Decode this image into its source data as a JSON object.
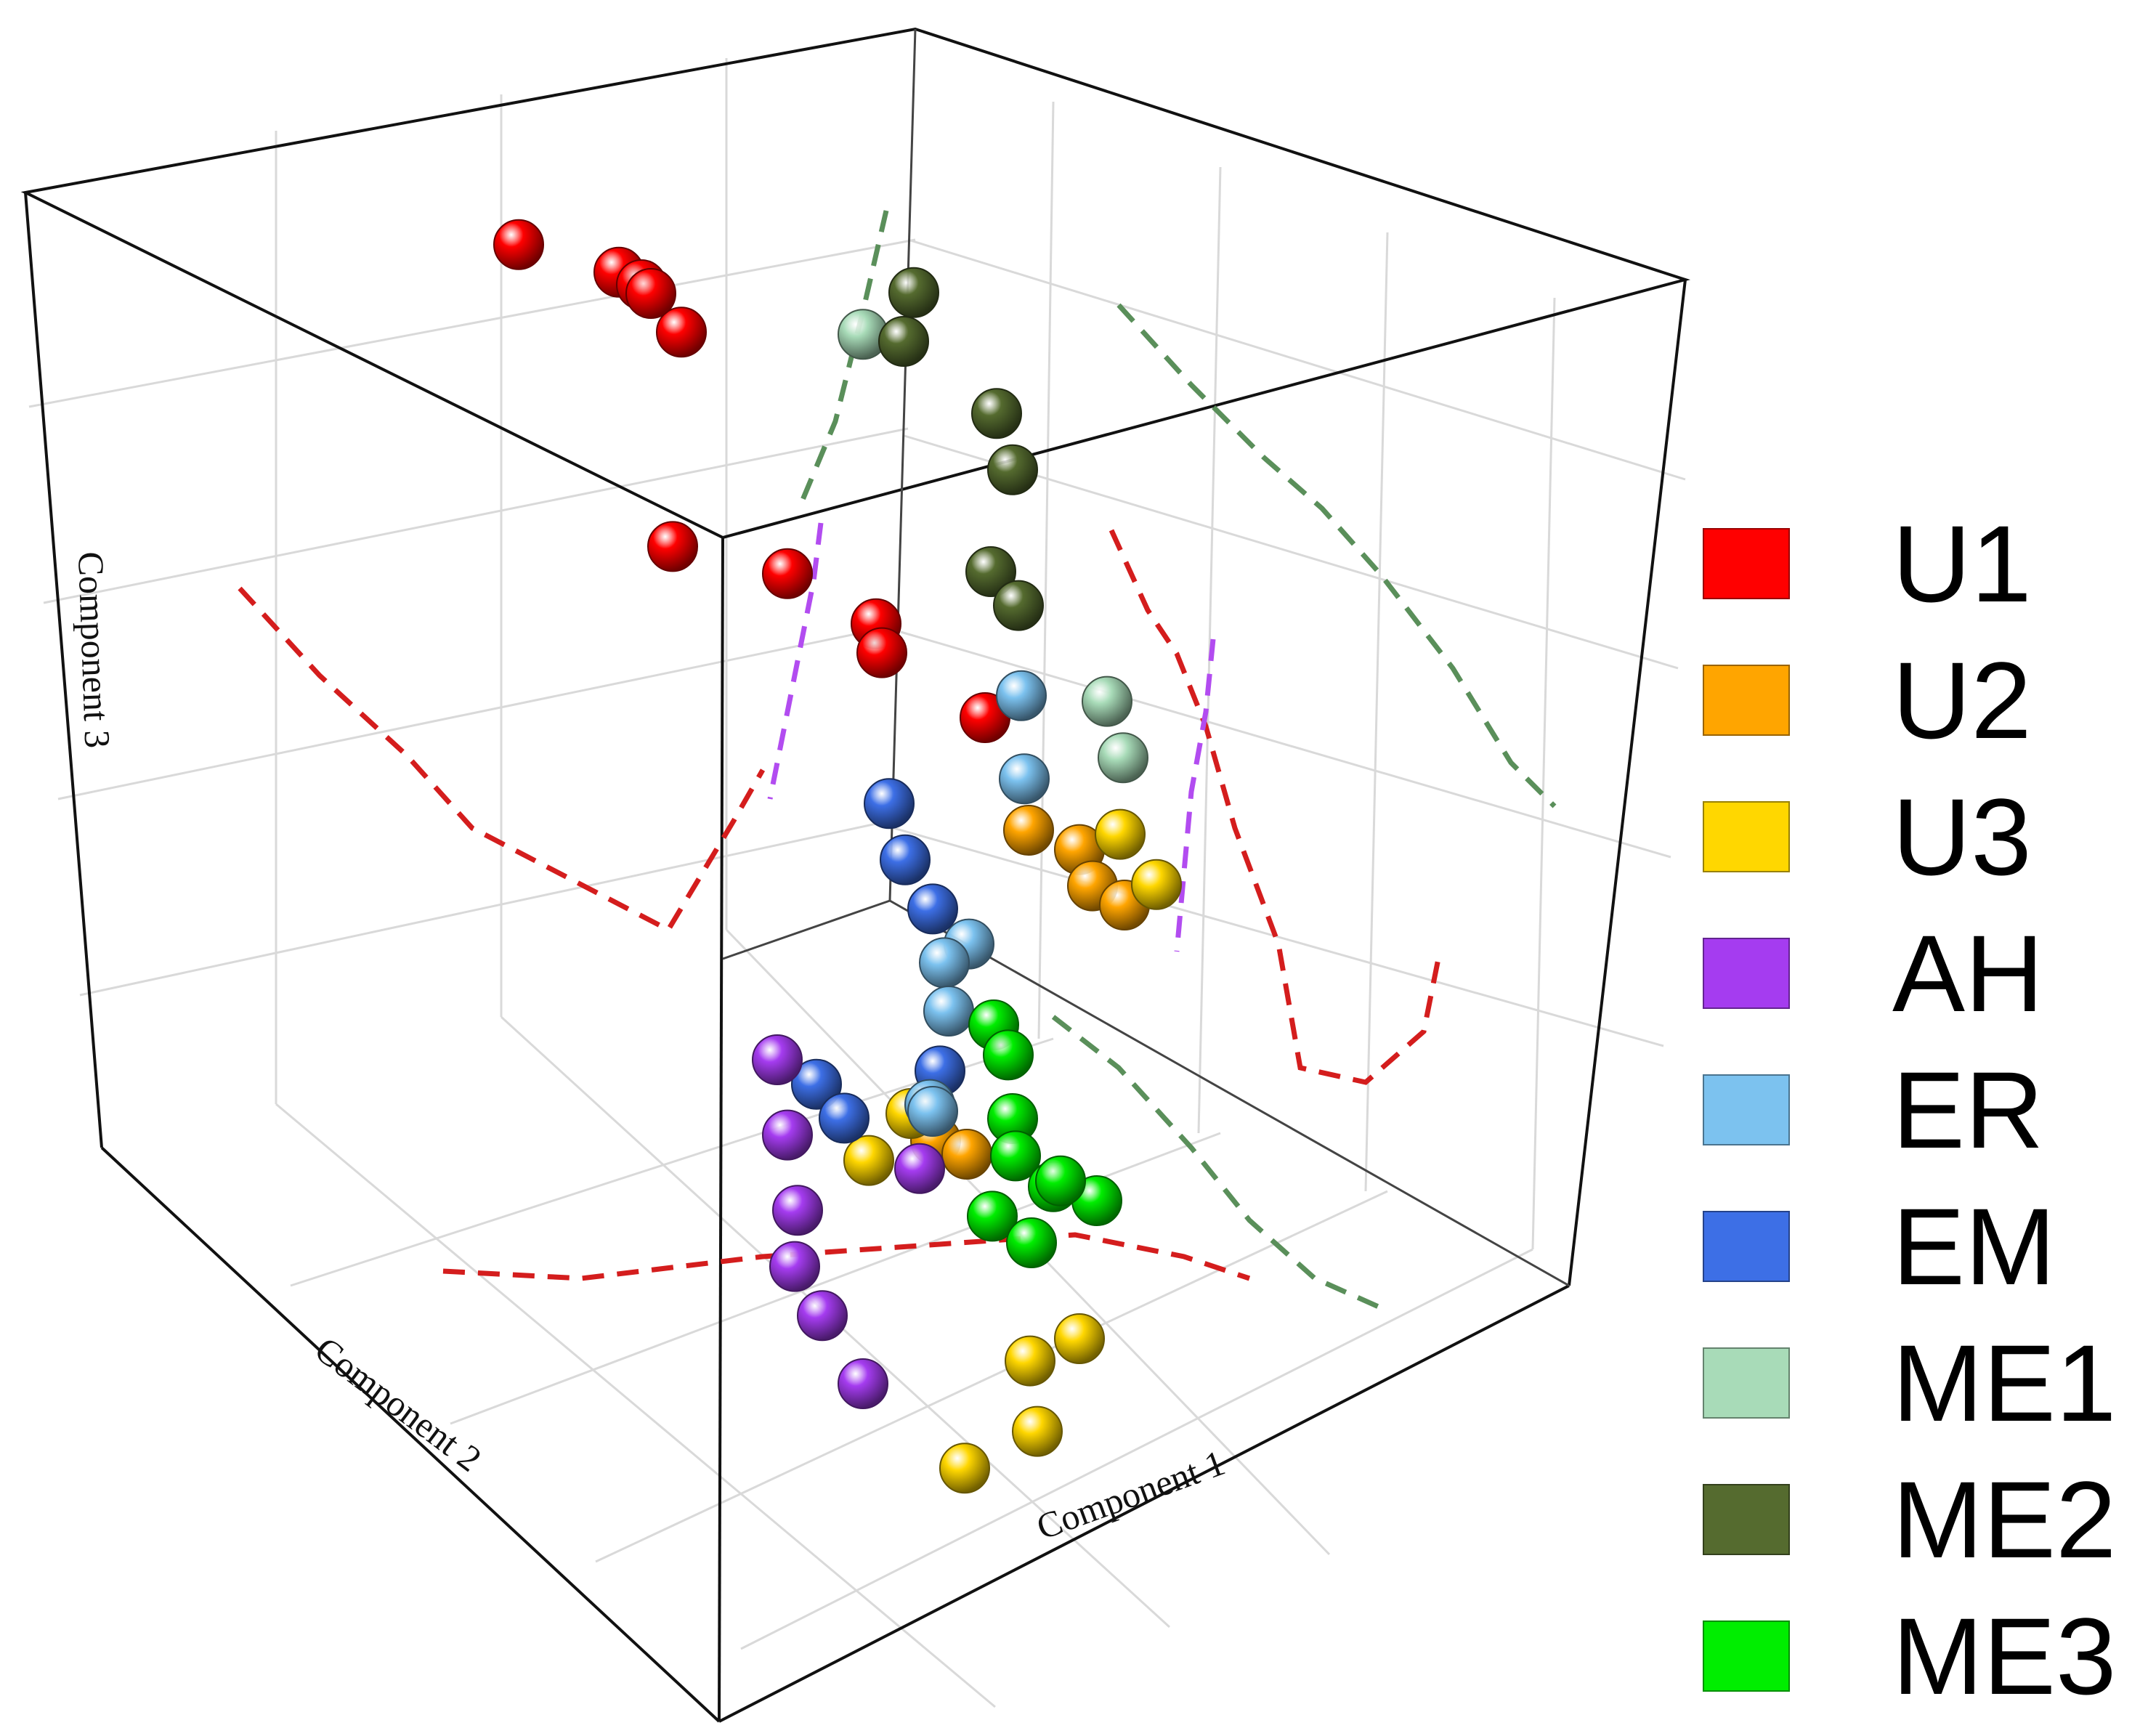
{
  "chart_data": {
    "type": "scatter",
    "title": "",
    "axes": {
      "x": "Component 1",
      "y": "Component 2",
      "z": "Component 3"
    },
    "grid": true,
    "legend_position": "right",
    "series": [
      {
        "name": "U1",
        "color": "#ff0000",
        "points": [
          [
            -0.72,
            -0.44,
            0.72
          ],
          [
            -0.62,
            -0.5,
            0.68
          ],
          [
            -0.55,
            -0.46,
            0.7
          ],
          [
            -0.5,
            -0.42,
            0.72
          ],
          [
            -0.48,
            -0.45,
            0.66
          ],
          [
            -0.36,
            -0.3,
            0.48
          ],
          [
            -0.22,
            -0.34,
            0.46
          ],
          [
            -0.12,
            -0.38,
            0.4
          ],
          [
            -0.04,
            -0.3,
            0.42
          ],
          [
            0.1,
            -0.32,
            0.36
          ]
        ]
      },
      {
        "name": "U2",
        "color": "#ffa500",
        "points": [
          [
            -0.1,
            -0.62,
            0.02
          ],
          [
            -0.04,
            -0.64,
            0.0
          ],
          [
            0.06,
            -0.55,
            0.02
          ],
          [
            0.1,
            -0.56,
            0.0
          ],
          [
            0.22,
            -0.1,
            -0.06
          ],
          [
            0.25,
            -0.12,
            -0.08
          ]
        ]
      },
      {
        "name": "U3",
        "color": "#ffd700",
        "points": [
          [
            0.36,
            -0.26,
            0.3
          ],
          [
            0.38,
            -0.3,
            0.22
          ],
          [
            0.2,
            -0.08,
            -0.02
          ],
          [
            0.26,
            0.06,
            0.0
          ],
          [
            0.56,
            0.12,
            -0.16
          ],
          [
            0.6,
            0.08,
            -0.14
          ],
          [
            0.66,
            0.22,
            -0.18
          ],
          [
            0.62,
            0.3,
            -0.2
          ]
        ]
      },
      {
        "name": "AH",
        "color": "#a53cf0",
        "points": [
          [
            0.2,
            0.15,
            0.16
          ],
          [
            0.26,
            0.2,
            0.1
          ],
          [
            0.32,
            0.25,
            0.04
          ],
          [
            0.36,
            0.3,
            0.0
          ],
          [
            0.42,
            0.32,
            -0.04
          ],
          [
            0.5,
            0.34,
            -0.1
          ],
          [
            0.48,
            0.22,
            0.12
          ]
        ]
      },
      {
        "name": "ER",
        "color": "#7cc2ef",
        "points": [
          [
            0.28,
            -0.18,
            0.5
          ],
          [
            0.32,
            -0.14,
            0.42
          ],
          [
            0.36,
            0.0,
            0.28
          ],
          [
            0.34,
            0.02,
            0.26
          ],
          [
            0.4,
            0.08,
            0.24
          ],
          [
            0.46,
            0.18,
            0.18
          ],
          [
            0.5,
            0.22,
            0.2
          ]
        ]
      },
      {
        "name": "EM",
        "color": "#3d6fe6",
        "points": [
          [
            0.22,
            -0.02,
            0.42
          ],
          [
            0.28,
            0.02,
            0.38
          ],
          [
            0.34,
            0.04,
            0.34
          ],
          [
            0.44,
            0.14,
            0.2
          ],
          [
            0.18,
            0.06,
            0.08
          ],
          [
            0.24,
            0.08,
            0.06
          ]
        ]
      },
      {
        "name": "ME1",
        "color": "#a8dbb8",
        "points": [
          [
            0.66,
            0.1,
            0.72
          ],
          [
            0.72,
            0.14,
            0.68
          ],
          [
            0.02,
            -0.2,
            0.9
          ]
        ]
      },
      {
        "name": "ME2",
        "color": "#556b2f",
        "points": [
          [
            0.42,
            0.02,
            1.0
          ],
          [
            0.48,
            0.06,
            0.96
          ],
          [
            0.5,
            0.12,
            0.86
          ],
          [
            0.56,
            0.14,
            0.84
          ],
          [
            0.08,
            -0.22,
            0.96
          ],
          [
            0.1,
            -0.18,
            0.92
          ]
        ]
      },
      {
        "name": "ME3",
        "color": "#00ee00",
        "points": [
          [
            0.8,
            0.42,
            0.36
          ],
          [
            0.84,
            0.46,
            0.34
          ],
          [
            0.88,
            0.44,
            0.3
          ],
          [
            0.84,
            0.5,
            0.28
          ],
          [
            0.9,
            0.5,
            0.26
          ],
          [
            0.7,
            0.34,
            0.42
          ],
          [
            0.74,
            0.36,
            0.4
          ],
          [
            0.98,
            0.54,
            0.38
          ],
          [
            1.0,
            0.5,
            0.34
          ]
        ]
      }
    ]
  }
}
